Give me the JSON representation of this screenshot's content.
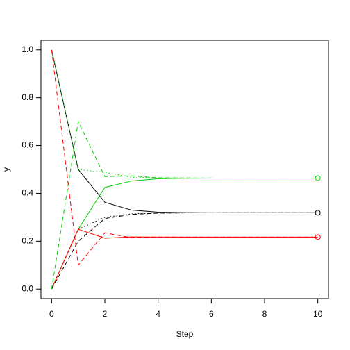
{
  "chart_data": {
    "type": "line",
    "x_label": "Step",
    "y_label": "y",
    "x": [
      0,
      1,
      2,
      3,
      4,
      5,
      6,
      7,
      8,
      9,
      10
    ],
    "xlim": [
      -0.4,
      10.4
    ],
    "ylim": [
      -0.04,
      1.04
    ],
    "xticks": [
      0,
      2,
      4,
      6,
      8,
      10
    ],
    "yticks": [
      {
        "value": 0,
        "label": "0.0"
      },
      {
        "value": 0.2,
        "label": "0.2"
      },
      {
        "value": 0.4,
        "label": "0.4"
      },
      {
        "value": 0.6,
        "label": "0.6"
      },
      {
        "value": 0.8,
        "label": "0.8"
      },
      {
        "value": 1,
        "label": "1.0"
      }
    ],
    "series": [
      {
        "color": "#000000",
        "dash": "solid",
        "values": [
          1,
          0.5,
          0.3625,
          0.33,
          0.3216,
          0.3195,
          0.319,
          0.3189,
          0.3188,
          0.3188,
          0.3188
        ]
      },
      {
        "color": "#00cd00",
        "dash": "solid",
        "values": [
          0,
          0.25,
          0.425,
          0.4519,
          0.4611,
          0.4631,
          0.4636,
          0.4637,
          0.4638,
          0.4638,
          0.4638
        ]
      },
      {
        "color": "#ff0000",
        "dash": "solid",
        "values": [
          0,
          0.25,
          0.2125,
          0.2181,
          0.2173,
          0.2174,
          0.2174,
          0.2174,
          0.2174,
          0.2174,
          0.2174
        ]
      },
      {
        "color": "#000000",
        "dash": "dotted",
        "values": [
          0,
          0.25,
          0.3,
          0.3144,
          0.3177,
          0.3185,
          0.3187,
          0.3188,
          0.3188,
          0.3188,
          0.3188
        ]
      },
      {
        "color": "#00cd00",
        "dash": "dotted",
        "values": [
          1,
          0.5,
          0.4875,
          0.4675,
          0.465,
          0.4641,
          0.4639,
          0.4638,
          0.4638,
          0.4638,
          0.4638
        ]
      },
      {
        "color": "#ff0000",
        "dash": "dotted",
        "values": [
          0,
          0.25,
          0.2125,
          0.2181,
          0.2173,
          0.2174,
          0.2174,
          0.2174,
          0.2174,
          0.2174,
          0.2174
        ]
      },
      {
        "color": "#000000",
        "dash": "dashed",
        "values": [
          0,
          0.2,
          0.295,
          0.312,
          0.3173,
          0.3184,
          0.3187,
          0.3188,
          0.3188,
          0.3188,
          0.3188
        ]
      },
      {
        "color": "#00cd00",
        "dash": "dashed",
        "values": [
          0,
          0.7,
          0.47,
          0.4733,
          0.465,
          0.4644,
          0.4639,
          0.4638,
          0.4638,
          0.4638,
          0.4638
        ]
      },
      {
        "color": "#ff0000",
        "dash": "dashed",
        "values": [
          1,
          0.1,
          0.235,
          0.2148,
          0.2178,
          0.2172,
          0.2174,
          0.2174,
          0.2174,
          0.2174,
          0.2174
        ]
      }
    ],
    "markers": {
      "x": 10,
      "values": [
        0.3188,
        0.4638,
        0.2174
      ],
      "colors": [
        "#000000",
        "#00cd00",
        "#ff0000"
      ]
    }
  }
}
